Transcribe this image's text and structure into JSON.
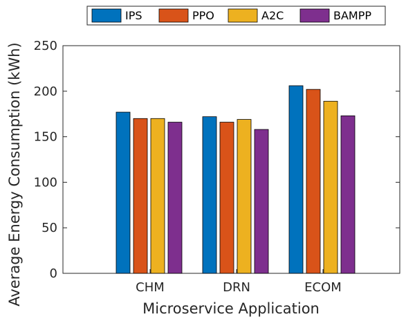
{
  "chart_data": {
    "type": "bar",
    "title": "",
    "xlabel": "Microservice Application",
    "ylabel": "Average Energy Consumption (kWh)",
    "categories": [
      "CHM",
      "DRN",
      "ECOM"
    ],
    "ylim": [
      0,
      250
    ],
    "yticks": [
      0,
      50,
      100,
      150,
      200,
      250
    ],
    "grid": false,
    "legend_position": "top",
    "series": [
      {
        "name": "IPS",
        "color": "#0072BD",
        "values": [
          177,
          172,
          206
        ]
      },
      {
        "name": "PPO",
        "color": "#D95319",
        "values": [
          170,
          166,
          202
        ]
      },
      {
        "name": "A2C",
        "color": "#EDB120",
        "values": [
          170,
          169,
          189
        ]
      },
      {
        "name": "BAMPP",
        "color": "#7E2F8E",
        "values": [
          166,
          158,
          173
        ]
      }
    ]
  }
}
